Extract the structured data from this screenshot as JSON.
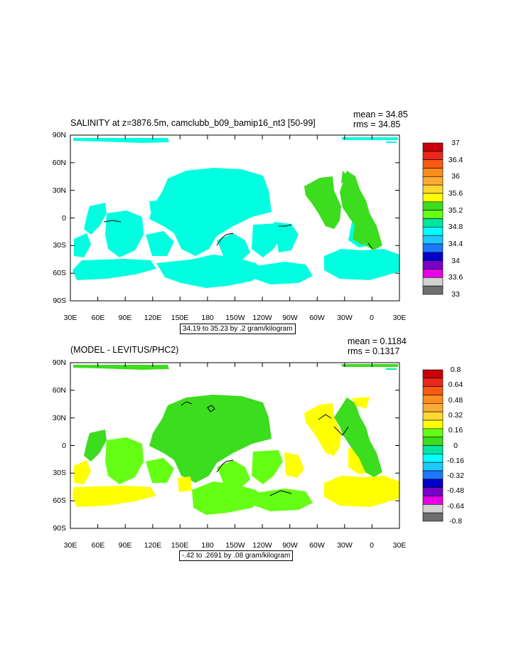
{
  "panels": [
    {
      "title": "SALINITY at z=3876.5m, camclubb_b09_bamip16_nt3 [50-99]",
      "mean": "mean = 34.85",
      "rms": "rms = 34.85",
      "caption": "34.19 to 35.23 by .2 gram/kilogram",
      "y_ticks": [
        "90N",
        "60N",
        "30N",
        "0",
        "30S",
        "60S",
        "90S"
      ],
      "x_ticks": [
        "30E",
        "60E",
        "90E",
        "120E",
        "150E",
        "180",
        "150W",
        "120W",
        "90W",
        "60W",
        "30W",
        "0",
        "30E"
      ],
      "legend": {
        "colors": [
          "#c8000a",
          "#e8281a",
          "#fa5a14",
          "#ff8c1e",
          "#ffaa32",
          "#ffd732",
          "#ffff00",
          "#3cdc1e",
          "#64ff14",
          "#00e6a0",
          "#00ffff",
          "#1ec8ff",
          "#1e78ff",
          "#0000c8",
          "#7800c8",
          "#e600e6",
          "#d2d2d2",
          "#6e6e6e"
        ],
        "labels": [
          "37",
          "36.4",
          "36",
          "35.6",
          "35.2",
          "34.8",
          "34.4",
          "34",
          "33.6",
          "33"
        ]
      }
    },
    {
      "title": "(MODEL - LEVITUS/PHC2)",
      "mean": "mean = 0.1184",
      "rms": "rms = 0.1317",
      "caption": "-.42 to .2691 by .08 gram/kilogram",
      "y_ticks": [
        "90N",
        "60N",
        "30N",
        "0",
        "30S",
        "60S",
        "90S"
      ],
      "x_ticks": [
        "30E",
        "60E",
        "90E",
        "120E",
        "150E",
        "180",
        "150W",
        "120W",
        "90W",
        "60W",
        "30W",
        "0",
        "30E"
      ],
      "legend": {
        "colors": [
          "#c8000a",
          "#e8281a",
          "#fa5a14",
          "#ff8c1e",
          "#ffaa32",
          "#ffd732",
          "#ffff00",
          "#64ff14",
          "#3cdc1e",
          "#00e6a0",
          "#00ffff",
          "#1ec8ff",
          "#1e78ff",
          "#0000c8",
          "#7800c8",
          "#e600e6",
          "#d2d2d2",
          "#6e6e6e"
        ],
        "labels": [
          "0.8",
          "0.64",
          "0.48",
          "0.32",
          "0.16",
          "0",
          "-0.16",
          "-0.32",
          "-0.48",
          "-0.64",
          "-0.8"
        ]
      }
    }
  ]
}
